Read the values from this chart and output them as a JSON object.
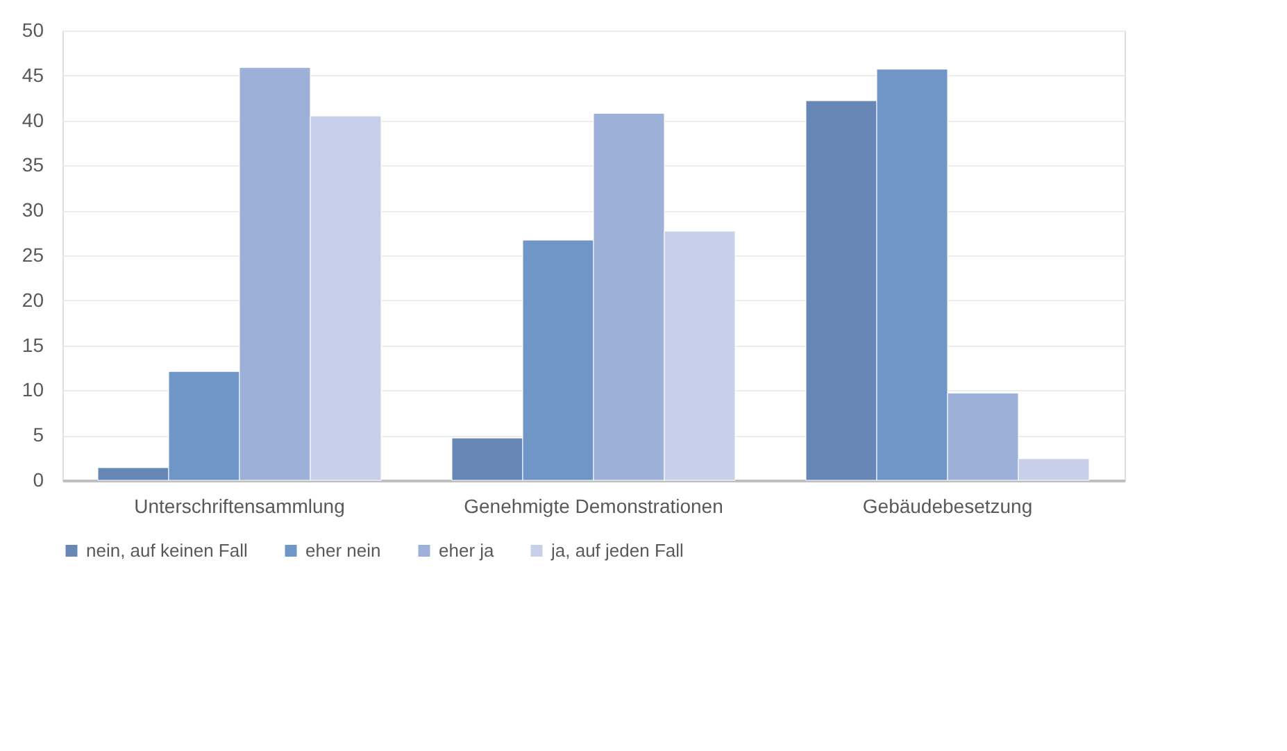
{
  "chart_data": {
    "type": "bar",
    "categories": [
      "Unterschriftensammlung",
      "Genehmigte Demonstrationen",
      "Gebäudebesetzung"
    ],
    "series": [
      {
        "name": "nein, auf keinen Fall",
        "color": "#6787b7",
        "values": [
          1.4,
          4.7,
          42.2
        ]
      },
      {
        "name": "eher nein",
        "color": "#7096c8",
        "values": [
          12.1,
          26.7,
          45.7
        ]
      },
      {
        "name": "eher ja",
        "color": "#9db0d7",
        "values": [
          45.9,
          40.8,
          9.7
        ]
      },
      {
        "name": "ja, auf jeden Fall",
        "color": "#c7d0e8",
        "values": [
          40.5,
          27.7,
          2.4
        ]
      }
    ],
    "ylim": [
      0,
      50
    ],
    "yticks": [
      0,
      5,
      10,
      15,
      20,
      25,
      30,
      35,
      40,
      45,
      50
    ],
    "grid": "y",
    "legend": "bottom"
  }
}
